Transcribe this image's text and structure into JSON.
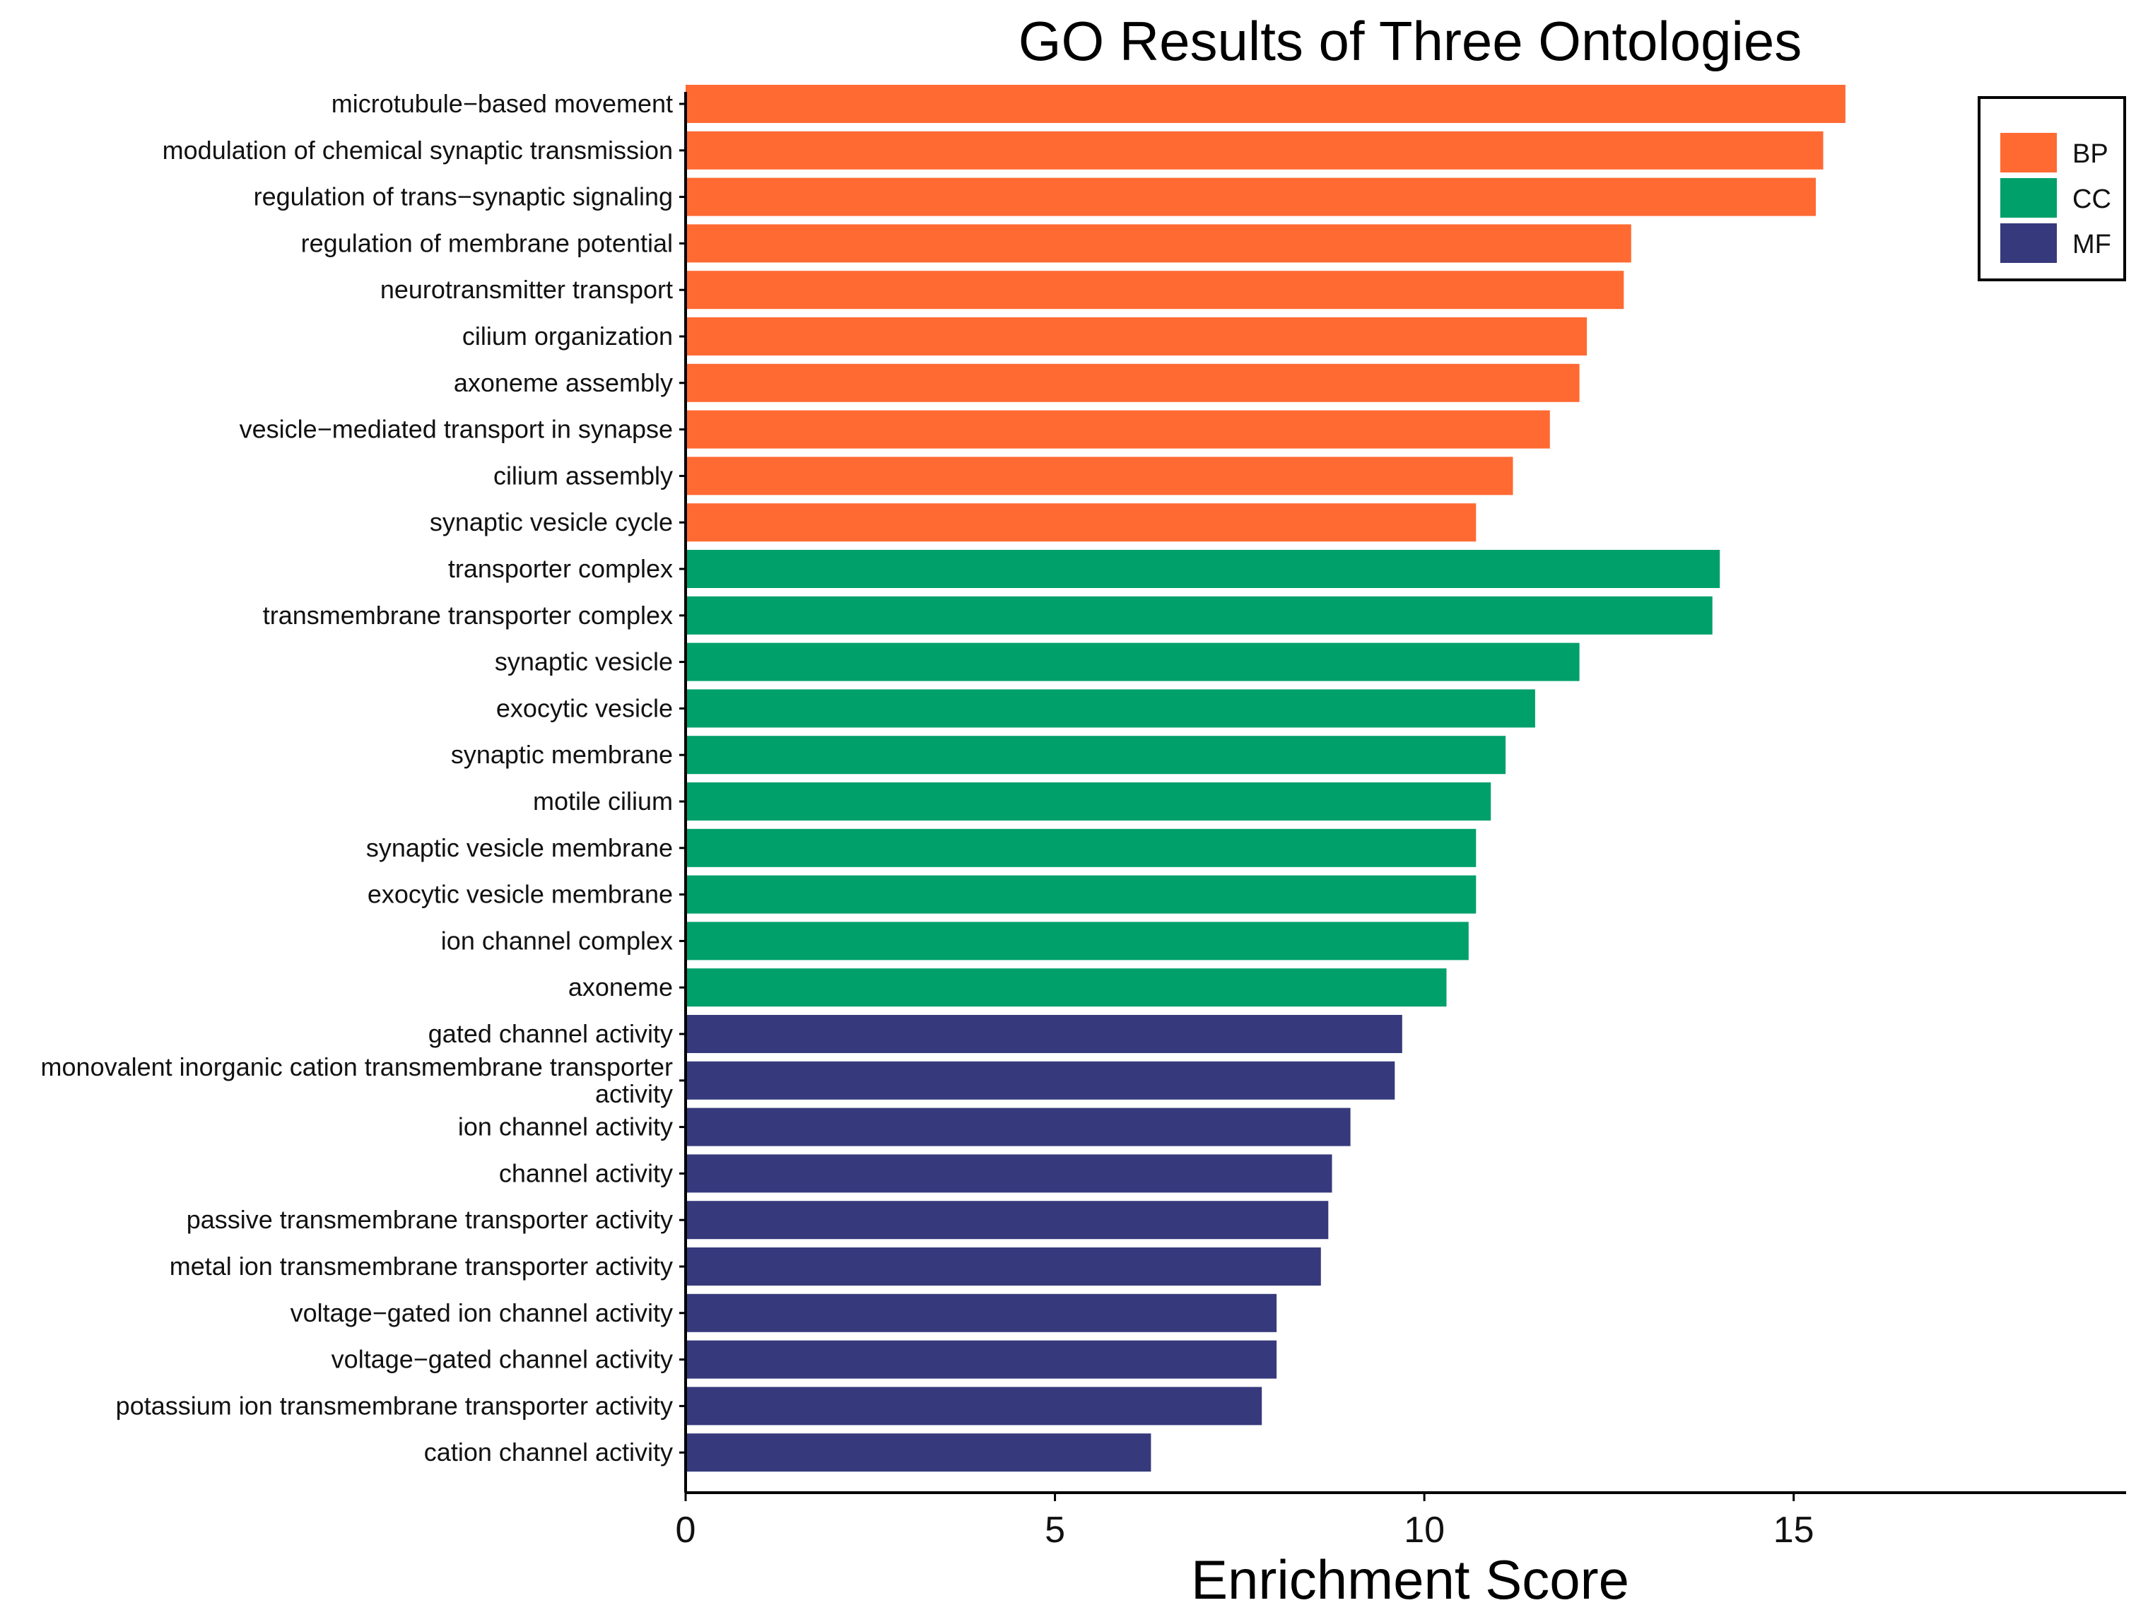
{
  "chart_data": {
    "type": "bar",
    "orientation": "horizontal",
    "title": "GO Results of Three Ontologies",
    "xlabel": "Enrichment Score",
    "ylabel": "",
    "xlim": [
      0,
      19.5
    ],
    "xticks": [
      0,
      5,
      10,
      15
    ],
    "grid": false,
    "legend_position": "top-right",
    "legend": [
      {
        "name": "BP",
        "color": "#FF6A33"
      },
      {
        "name": "CC",
        "color": "#00A06A"
      },
      {
        "name": "MF",
        "color": "#363A7C"
      }
    ],
    "categories": [
      "microtubule−based movement",
      "modulation of chemical synaptic transmission",
      "regulation of trans−synaptic signaling",
      "regulation of membrane potential",
      "neurotransmitter transport",
      "cilium organization",
      "axoneme assembly",
      "vesicle−mediated transport in synapse",
      "cilium assembly",
      "synaptic vesicle cycle",
      "transporter complex",
      "transmembrane transporter complex",
      "synaptic vesicle",
      "exocytic vesicle",
      "synaptic membrane",
      "motile cilium",
      "synaptic vesicle membrane",
      "exocytic vesicle membrane",
      "ion channel complex",
      "axoneme",
      "gated channel activity",
      "monovalent inorganic cation transmembrane transporter activity",
      "ion channel activity",
      "channel activity",
      "passive transmembrane transporter activity",
      "metal ion transmembrane transporter activity",
      "voltage−gated ion channel activity",
      "voltage−gated channel activity",
      "potassium ion transmembrane transporter activity",
      "cation channel activity"
    ],
    "label_lines": [
      [
        "microtubule−based movement"
      ],
      [
        "modulation of chemical synaptic transmission"
      ],
      [
        "regulation of trans−synaptic signaling"
      ],
      [
        "regulation of membrane potential"
      ],
      [
        "neurotransmitter transport"
      ],
      [
        "cilium organization"
      ],
      [
        "axoneme assembly"
      ],
      [
        "vesicle−mediated transport in synapse"
      ],
      [
        "cilium assembly"
      ],
      [
        "synaptic vesicle cycle"
      ],
      [
        "transporter complex"
      ],
      [
        "transmembrane transporter complex"
      ],
      [
        "synaptic vesicle"
      ],
      [
        "exocytic vesicle"
      ],
      [
        "synaptic membrane"
      ],
      [
        "motile cilium"
      ],
      [
        "synaptic vesicle membrane"
      ],
      [
        "exocytic vesicle membrane"
      ],
      [
        "ion channel complex"
      ],
      [
        "axoneme"
      ],
      [
        "gated channel activity"
      ],
      [
        "monovalent inorganic cation transmembrane transporter",
        "activity"
      ],
      [
        "ion channel activity"
      ],
      [
        "channel activity"
      ],
      [
        "passive transmembrane transporter activity"
      ],
      [
        "metal ion transmembrane transporter activity"
      ],
      [
        "voltage−gated ion channel activity"
      ],
      [
        "voltage−gated channel activity"
      ],
      [
        "potassium ion transmembrane transporter activity"
      ],
      [
        "cation channel activity"
      ]
    ],
    "groups": [
      "BP",
      "BP",
      "BP",
      "BP",
      "BP",
      "BP",
      "BP",
      "BP",
      "BP",
      "BP",
      "CC",
      "CC",
      "CC",
      "CC",
      "CC",
      "CC",
      "CC",
      "CC",
      "CC",
      "CC",
      "MF",
      "MF",
      "MF",
      "MF",
      "MF",
      "MF",
      "MF",
      "MF",
      "MF",
      "MF"
    ],
    "values": [
      15.7,
      15.4,
      15.3,
      12.8,
      12.7,
      12.2,
      12.1,
      11.7,
      11.2,
      10.7,
      14.0,
      13.9,
      12.1,
      11.5,
      11.1,
      10.9,
      10.7,
      10.7,
      10.6,
      10.3,
      9.7,
      9.6,
      9.0,
      8.75,
      8.7,
      8.6,
      8.0,
      8.0,
      7.8,
      6.3
    ]
  }
}
